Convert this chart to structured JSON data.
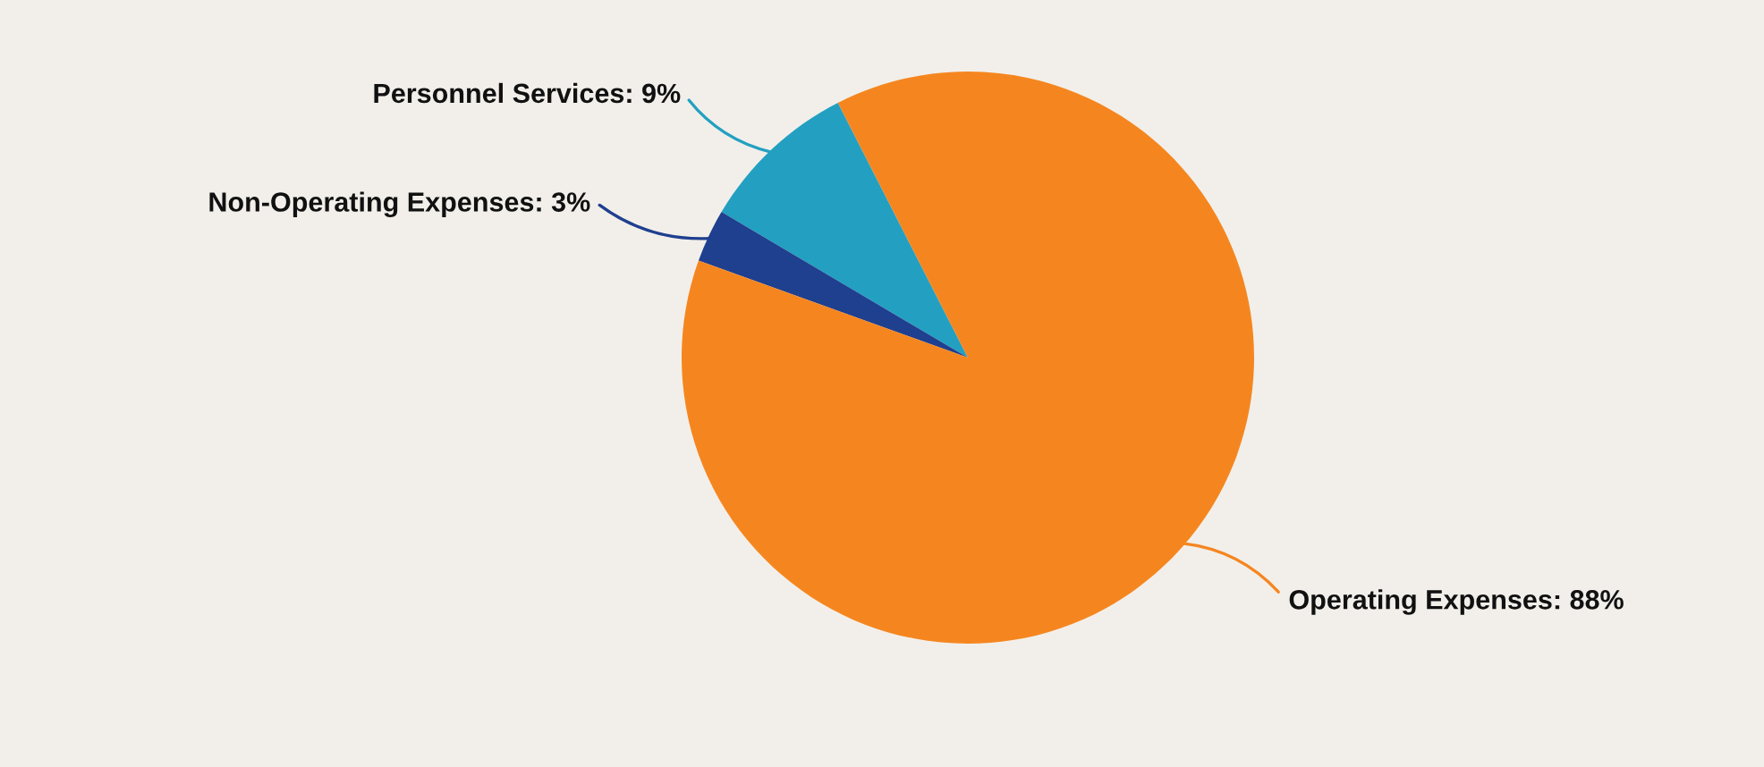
{
  "chart_data": {
    "type": "pie",
    "categories": [
      "Personnel Services",
      "Non-Operating Expenses",
      "Operating Expenses"
    ],
    "values": [
      9,
      3,
      88
    ],
    "value_labels": [
      "9%",
      "3%",
      "88%"
    ],
    "colors": [
      "#23a0c1",
      "#1f3f8f",
      "#f5861f"
    ]
  }
}
